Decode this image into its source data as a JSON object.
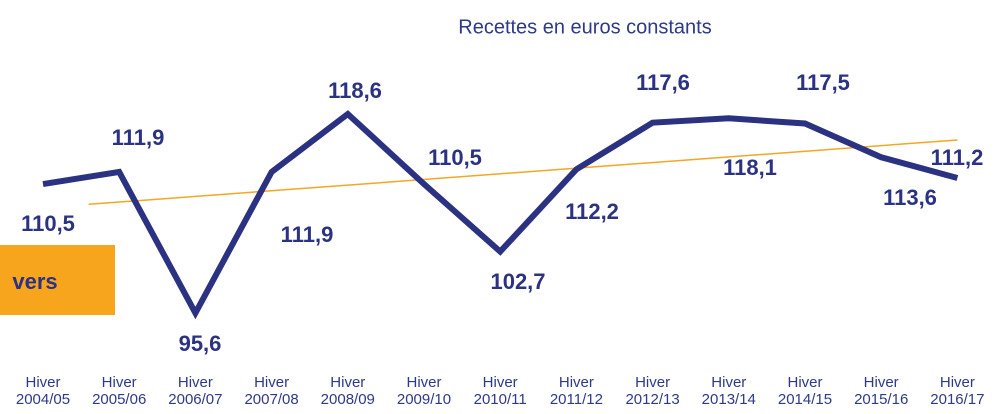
{
  "chart_data": {
    "type": "line",
    "title": "Recettes en euros constants",
    "annotation": "vers",
    "categories": [
      "Hiver\n2004/05",
      "Hiver\n2005/06",
      "Hiver\n2006/07",
      "Hiver\n2007/08",
      "Hiver\n2008/09",
      "Hiver\n2009/10",
      "Hiver\n2010/11",
      "Hiver\n2011/12",
      "Hiver\n2012/13",
      "Hiver\n2013/14",
      "Hiver\n2014/15",
      "Hiver\n2015/16",
      "Hiver\n2016/17"
    ],
    "series": [
      {
        "color": "#2b3282",
        "values": [
          110.5,
          111.9,
          95.6,
          111.9,
          118.6,
          110.5,
          102.7,
          112.2,
          117.6,
          118.1,
          117.5,
          113.6,
          111.2
        ],
        "value_labels": [
          "110,5",
          "111,9",
          "95,6",
          "111,9",
          "118,6",
          "110,5",
          "102,7",
          "112,2",
          "117,6",
          "118,1",
          "117,5",
          "113,6",
          "111,2"
        ]
      }
    ],
    "ylim": [
      90,
      125
    ],
    "trendline": true,
    "trend_color": "#f5a623",
    "annotation_color": "#f7a51c"
  }
}
